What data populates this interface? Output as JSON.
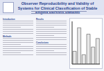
{
  "header": {
    "title": "Observer Reproducibility and Validity of Systems for Clinical Classification of Stable Angina Pectoris Patients"
  },
  "sections": [
    "Introduction",
    "Methods",
    "Results",
    "Conclusions"
  ],
  "chart_data": {
    "type": "bar",
    "categories": [
      null,
      null,
      null,
      null,
      null,
      null
    ],
    "values": [
      30,
      85,
      22,
      70,
      40,
      60
    ],
    "color": "#e8e8e8",
    "ylim": [
      0,
      100
    ],
    "tick_labels": false
  }
}
